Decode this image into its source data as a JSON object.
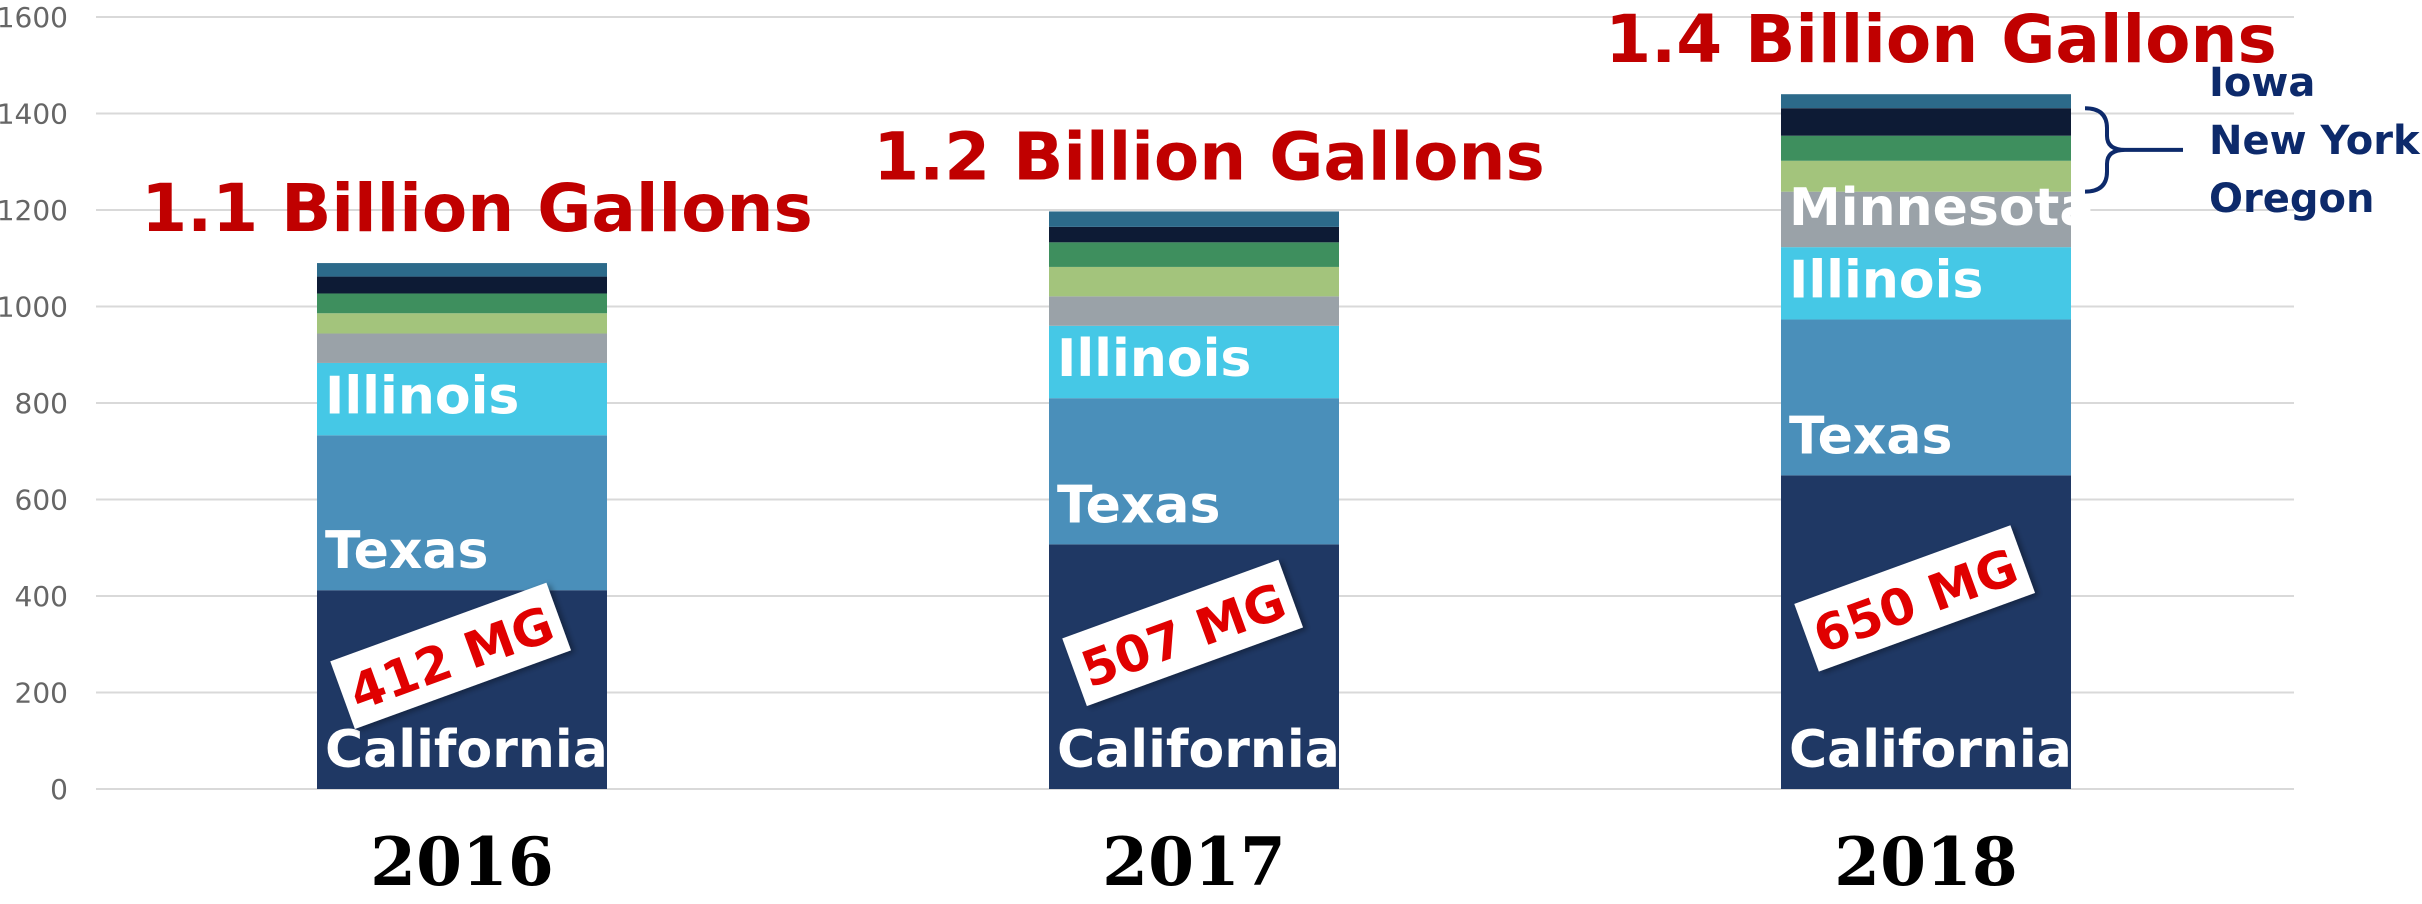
{
  "chart_data": {
    "type": "stacked_bar",
    "categories": [
      "2016",
      "2017",
      "2018"
    ],
    "series": [
      {
        "name": "California",
        "color": "#1f3864",
        "values": [
          412,
          507,
          650
        ],
        "value_labels": [
          "412 MG",
          "507 MG",
          "650 MG"
        ]
      },
      {
        "name": "Texas",
        "color": "#4a8fba",
        "values": [
          321,
          303,
          323
        ]
      },
      {
        "name": "Illinois",
        "color": "#45c8e6",
        "values": [
          150,
          150,
          150
        ]
      },
      {
        "name": "Minnesota",
        "color": "#9aa2a8",
        "values": [
          61,
          61,
          115
        ]
      },
      {
        "name": "Oregon",
        "color": "#a3c47c",
        "values": [
          42,
          61,
          64
        ]
      },
      {
        "name": "New York",
        "color": "#3e8f5e",
        "values": [
          41,
          51,
          52
        ]
      },
      {
        "name": "Iowa",
        "color": "#0d1b35",
        "values": [
          35,
          32,
          57
        ]
      },
      {
        "color": "#2c6a8a",
        "values": [
          28,
          32,
          29
        ]
      }
    ],
    "annotations": [
      "1.1 Billion Gallons",
      "1.2 Billion Gallons",
      "1.4 Billion Gallons"
    ],
    "ylim": [
      0,
      1600
    ],
    "yticks": [
      0,
      200,
      400,
      600,
      800,
      1000,
      1200,
      1400,
      1600
    ],
    "grid": true
  }
}
